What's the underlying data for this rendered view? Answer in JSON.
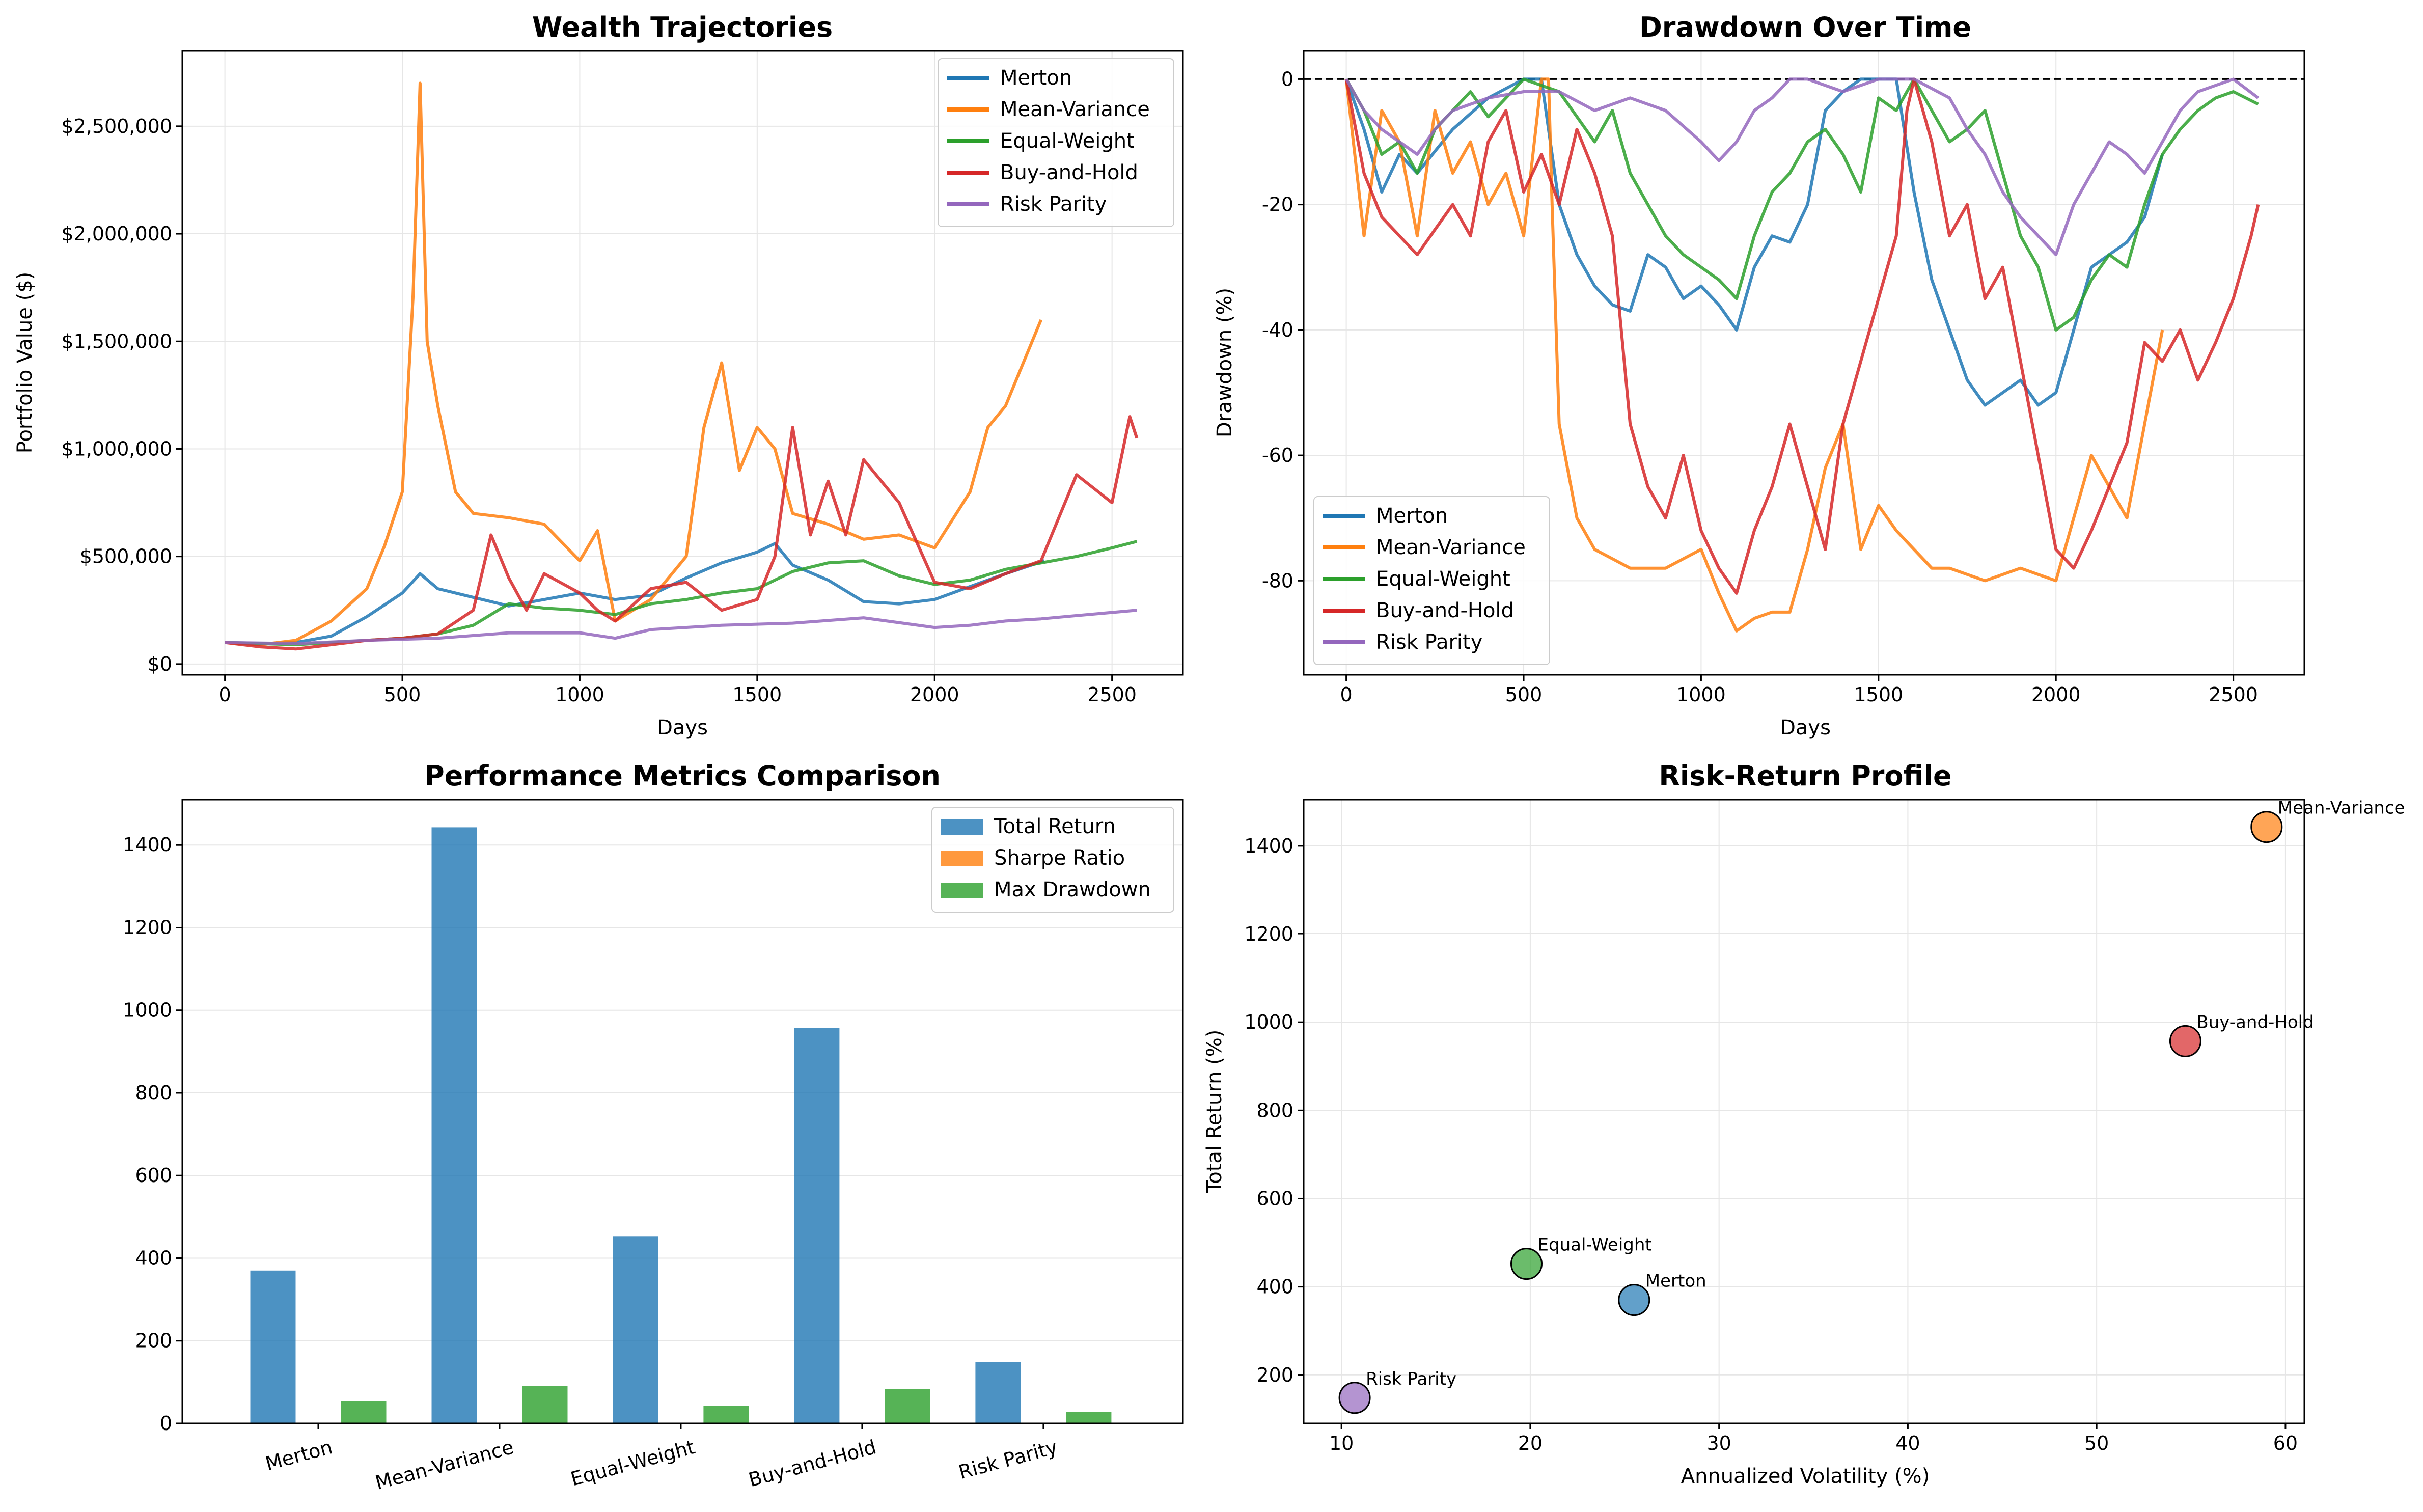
{
  "colors": {
    "merton": "#1f77b4",
    "mean_variance": "#ff7f0e",
    "equal_weight": "#2ca02c",
    "buy_and_hold": "#d62728",
    "risk_parity": "#9467bd"
  },
  "strategies": [
    "Merton",
    "Mean-Variance",
    "Equal-Weight",
    "Buy-and-Hold",
    "Risk Parity"
  ],
  "chart_data": [
    {
      "type": "line",
      "title": "Wealth Trajectories",
      "xlabel": "Days",
      "ylabel": "Portfolio Value ($)",
      "xlim": [
        -120,
        2700
      ],
      "ylim": [
        -50000,
        2850000
      ],
      "xticks": [
        0,
        500,
        1000,
        1500,
        2000,
        2500
      ],
      "yticks": [
        0,
        500000,
        1000000,
        1500000,
        2000000,
        2500000
      ],
      "ytick_labels": [
        "$0",
        "$500,000",
        "$1,000,000",
        "$1,500,000",
        "$2,000,000",
        "$2,500,000"
      ],
      "grid": true,
      "legend": "top-right",
      "series": [
        {
          "name": "Merton",
          "color_key": "merton",
          "x": [
            0,
            100,
            200,
            300,
            400,
            500,
            550,
            600,
            700,
            800,
            900,
            1000,
            1100,
            1200,
            1300,
            1400,
            1500,
            1550,
            1600,
            1700,
            1800,
            1900,
            2000,
            2100,
            2200,
            2310
          ],
          "y": [
            100000,
            95000,
            100000,
            130000,
            220000,
            330000,
            420000,
            350000,
            310000,
            270000,
            300000,
            330000,
            300000,
            320000,
            400000,
            470000,
            520000,
            560000,
            460000,
            390000,
            290000,
            280000,
            300000,
            360000,
            420000,
            480000
          ]
        },
        {
          "name": "Mean-Variance",
          "color_key": "mean_variance",
          "x": [
            0,
            100,
            200,
            300,
            400,
            450,
            500,
            530,
            550,
            570,
            600,
            650,
            700,
            800,
            900,
            1000,
            1050,
            1100,
            1200,
            1300,
            1350,
            1400,
            1450,
            1500,
            1550,
            1600,
            1700,
            1800,
            1900,
            2000,
            2100,
            2150,
            2200,
            2250,
            2300
          ],
          "y": [
            100000,
            90000,
            110000,
            200000,
            350000,
            550000,
            800000,
            1700000,
            2700000,
            1500000,
            1200000,
            800000,
            700000,
            680000,
            650000,
            480000,
            620000,
            200000,
            300000,
            500000,
            1100000,
            1400000,
            900000,
            1100000,
            1000000,
            700000,
            650000,
            580000,
            600000,
            540000,
            800000,
            1100000,
            1200000,
            1400000,
            1600000
          ]
        },
        {
          "name": "Equal-Weight",
          "color_key": "equal_weight",
          "x": [
            0,
            100,
            200,
            300,
            400,
            500,
            600,
            700,
            800,
            900,
            1000,
            1100,
            1200,
            1300,
            1400,
            1500,
            1600,
            1700,
            1800,
            1900,
            2000,
            2100,
            2200,
            2300,
            2400,
            2500,
            2570
          ],
          "y": [
            100000,
            95000,
            90000,
            100000,
            110000,
            120000,
            140000,
            180000,
            280000,
            260000,
            250000,
            230000,
            280000,
            300000,
            330000,
            350000,
            430000,
            470000,
            480000,
            410000,
            370000,
            390000,
            440000,
            470000,
            500000,
            540000,
            570000
          ]
        },
        {
          "name": "Buy-and-Hold",
          "color_key": "buy_and_hold",
          "x": [
            0,
            100,
            200,
            300,
            400,
            500,
            600,
            700,
            750,
            800,
            850,
            900,
            1000,
            1050,
            1100,
            1200,
            1300,
            1400,
            1500,
            1550,
            1600,
            1650,
            1700,
            1750,
            1800,
            1900,
            2000,
            2100,
            2200,
            2300,
            2400,
            2500,
            2550,
            2570
          ],
          "y": [
            100000,
            80000,
            70000,
            90000,
            110000,
            120000,
            140000,
            250000,
            600000,
            400000,
            250000,
            420000,
            330000,
            250000,
            200000,
            350000,
            380000,
            250000,
            300000,
            500000,
            1100000,
            600000,
            850000,
            600000,
            950000,
            750000,
            380000,
            350000,
            420000,
            480000,
            880000,
            750000,
            1150000,
            1050000
          ]
        },
        {
          "name": "Risk Parity",
          "color_key": "risk_parity",
          "x": [
            0,
            200,
            400,
            600,
            800,
            1000,
            1100,
            1200,
            1400,
            1600,
            1800,
            2000,
            2100,
            2200,
            2300,
            2400,
            2570
          ],
          "y": [
            100000,
            95000,
            110000,
            120000,
            145000,
            145000,
            120000,
            160000,
            180000,
            190000,
            215000,
            170000,
            180000,
            200000,
            210000,
            225000,
            250000
          ]
        }
      ]
    },
    {
      "type": "line",
      "title": "Drawdown Over Time",
      "xlabel": "Days",
      "ylabel": "Drawdown (%)",
      "xlim": [
        -120,
        2700
      ],
      "ylim": [
        -95,
        4.5
      ],
      "xticks": [
        0,
        500,
        1000,
        1500,
        2000,
        2500
      ],
      "yticks": [
        0,
        -20,
        -40,
        -60,
        -80
      ],
      "grid": true,
      "legend": "bottom-left",
      "reference_line": 0,
      "series": [
        {
          "name": "Merton",
          "color_key": "merton",
          "x": [
            0,
            50,
            100,
            150,
            200,
            300,
            400,
            500,
            550,
            600,
            650,
            700,
            750,
            800,
            850,
            900,
            950,
            1000,
            1050,
            1100,
            1150,
            1200,
            1250,
            1300,
            1350,
            1400,
            1450,
            1500,
            1550,
            1600,
            1650,
            1700,
            1750,
            1800,
            1850,
            1900,
            1950,
            2000,
            2050,
            2100,
            2150,
            2200,
            2250,
            2300
          ],
          "y": [
            0,
            -8,
            -18,
            -12,
            -15,
            -8,
            -3,
            0,
            0,
            -20,
            -28,
            -33,
            -36,
            -37,
            -28,
            -30,
            -35,
            -33,
            -36,
            -40,
            -30,
            -25,
            -26,
            -20,
            -5,
            -2,
            0,
            0,
            0,
            -18,
            -32,
            -40,
            -48,
            -52,
            -50,
            -48,
            -52,
            -50,
            -40,
            -30,
            -28,
            -26,
            -22,
            -12
          ]
        },
        {
          "name": "Mean-Variance",
          "color_key": "mean_variance",
          "x": [
            0,
            50,
            100,
            150,
            200,
            250,
            300,
            350,
            400,
            450,
            500,
            550,
            570,
            580,
            600,
            650,
            700,
            800,
            900,
            1000,
            1050,
            1100,
            1150,
            1200,
            1250,
            1300,
            1350,
            1400,
            1450,
            1500,
            1550,
            1600,
            1650,
            1700,
            1800,
            1900,
            2000,
            2050,
            2100,
            2150,
            2200,
            2250,
            2300
          ],
          "y": [
            0,
            -25,
            -5,
            -10,
            -25,
            -5,
            -15,
            -10,
            -20,
            -15,
            -25,
            0,
            0,
            -20,
            -55,
            -70,
            -75,
            -78,
            -78,
            -75,
            -82,
            -88,
            -86,
            -85,
            -85,
            -75,
            -62,
            -55,
            -75,
            -68,
            -72,
            -75,
            -78,
            -78,
            -80,
            -78,
            -80,
            -70,
            -60,
            -65,
            -70,
            -55,
            -40
          ]
        },
        {
          "name": "Equal-Weight",
          "color_key": "equal_weight",
          "x": [
            0,
            50,
            100,
            150,
            200,
            250,
            300,
            350,
            400,
            450,
            500,
            600,
            700,
            750,
            800,
            850,
            900,
            950,
            1000,
            1050,
            1100,
            1150,
            1200,
            1250,
            1300,
            1350,
            1400,
            1450,
            1500,
            1550,
            1600,
            1650,
            1700,
            1750,
            1800,
            1850,
            1900,
            1950,
            2000,
            2050,
            2100,
            2150,
            2200,
            2250,
            2300,
            2350,
            2400,
            2450,
            2500,
            2570
          ],
          "y": [
            0,
            -5,
            -12,
            -10,
            -15,
            -8,
            -5,
            -2,
            -6,
            -3,
            0,
            -2,
            -10,
            -5,
            -15,
            -20,
            -25,
            -28,
            -30,
            -32,
            -35,
            -25,
            -18,
            -15,
            -10,
            -8,
            -12,
            -18,
            -3,
            -5,
            0,
            -5,
            -10,
            -8,
            -5,
            -15,
            -25,
            -30,
            -40,
            -38,
            -32,
            -28,
            -30,
            -20,
            -12,
            -8,
            -5,
            -3,
            -2,
            -4
          ]
        },
        {
          "name": "Buy-and-Hold",
          "color_key": "buy_and_hold",
          "x": [
            0,
            50,
            100,
            150,
            200,
            250,
            300,
            350,
            400,
            450,
            500,
            550,
            600,
            650,
            700,
            750,
            800,
            850,
            900,
            950,
            1000,
            1050,
            1100,
            1150,
            1200,
            1250,
            1300,
            1350,
            1400,
            1450,
            1500,
            1550,
            1580,
            1600,
            1650,
            1700,
            1750,
            1800,
            1850,
            1900,
            1950,
            2000,
            2050,
            2100,
            2150,
            2200,
            2250,
            2300,
            2350,
            2400,
            2450,
            2500,
            2550,
            2570
          ],
          "y": [
            0,
            -15,
            -22,
            -25,
            -28,
            -24,
            -20,
            -25,
            -10,
            -5,
            -18,
            -12,
            -20,
            -8,
            -15,
            -25,
            -55,
            -65,
            -70,
            -60,
            -72,
            -78,
            -82,
            -72,
            -65,
            -55,
            -65,
            -75,
            -55,
            -45,
            -35,
            -25,
            -5,
            0,
            -10,
            -25,
            -20,
            -35,
            -30,
            -45,
            -60,
            -75,
            -78,
            -72,
            -65,
            -58,
            -42,
            -45,
            -40,
            -48,
            -42,
            -35,
            -25,
            -20
          ]
        },
        {
          "name": "Risk Parity",
          "color_key": "risk_parity",
          "x": [
            0,
            50,
            100,
            150,
            200,
            250,
            300,
            400,
            500,
            600,
            700,
            800,
            900,
            1000,
            1050,
            1100,
            1150,
            1200,
            1250,
            1300,
            1400,
            1500,
            1600,
            1700,
            1750,
            1800,
            1850,
            1900,
            1950,
            2000,
            2050,
            2100,
            2150,
            2200,
            2250,
            2300,
            2350,
            2400,
            2450,
            2500,
            2570
          ],
          "y": [
            0,
            -5,
            -8,
            -10,
            -12,
            -8,
            -5,
            -3,
            -2,
            -2,
            -5,
            -3,
            -5,
            -10,
            -13,
            -10,
            -5,
            -3,
            0,
            0,
            -2,
            0,
            0,
            -3,
            -8,
            -12,
            -18,
            -22,
            -25,
            -28,
            -20,
            -15,
            -10,
            -12,
            -15,
            -10,
            -5,
            -2,
            -1,
            0,
            -3
          ]
        }
      ]
    },
    {
      "type": "bar",
      "title": "Performance Metrics Comparison",
      "categories": [
        "Merton",
        "Mean-Variance",
        "Equal-Weight",
        "Buy-and-Hold",
        "Risk Parity"
      ],
      "ylim": [
        0,
        1510
      ],
      "yticks": [
        0,
        200,
        400,
        600,
        800,
        1000,
        1200,
        1400
      ],
      "grid": true,
      "legend": "top-right",
      "series": [
        {
          "name": "Total Return",
          "color_key": "merton",
          "values": [
            370,
            1443,
            452,
            957,
            148
          ]
        },
        {
          "name": "Sharpe Ratio",
          "color_key": "mean_variance",
          "values": [
            0.9,
            1.2,
            1.0,
            1.1,
            0.8
          ]
        },
        {
          "name": "Max Drawdown",
          "color_key": "equal_weight",
          "values": [
            54,
            90,
            43,
            83,
            28
          ]
        }
      ]
    },
    {
      "type": "scatter",
      "title": "Risk-Return Profile",
      "xlabel": "Annualized Volatility (%)",
      "ylabel": "Total Return (%)",
      "xlim": [
        8,
        61
      ],
      "ylim": [
        90,
        1505
      ],
      "xticks": [
        10,
        20,
        30,
        40,
        50,
        60
      ],
      "yticks": [
        200,
        400,
        600,
        800,
        1000,
        1200,
        1400
      ],
      "grid": true,
      "points": [
        {
          "label": "Merton",
          "color_key": "merton",
          "x": 25.5,
          "y": 370
        },
        {
          "label": "Mean-Variance",
          "color_key": "mean_variance",
          "x": 59.0,
          "y": 1443
        },
        {
          "label": "Equal-Weight",
          "color_key": "equal_weight",
          "x": 19.8,
          "y": 452
        },
        {
          "label": "Buy-and-Hold",
          "color_key": "buy_and_hold",
          "x": 54.7,
          "y": 957
        },
        {
          "label": "Risk Parity",
          "color_key": "risk_parity",
          "x": 10.7,
          "y": 148
        }
      ]
    }
  ]
}
